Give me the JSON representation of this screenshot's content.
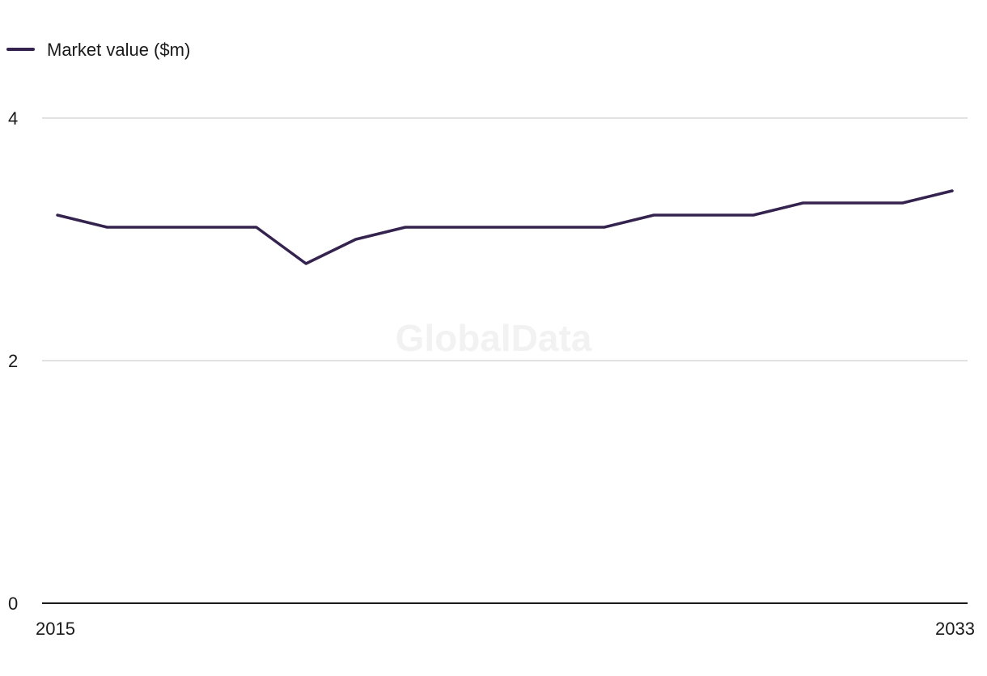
{
  "chart_data": {
    "type": "line",
    "title": "",
    "xlabel": "",
    "ylabel": "",
    "x": [
      2015,
      2016,
      2017,
      2018,
      2019,
      2020,
      2021,
      2022,
      2023,
      2024,
      2025,
      2026,
      2027,
      2028,
      2029,
      2030,
      2031,
      2032,
      2033
    ],
    "x_tick_labels": [
      "2015",
      "2033"
    ],
    "ylim": [
      0,
      4
    ],
    "y_ticks": [
      0,
      2,
      4
    ],
    "y_tick_labels": [
      "0",
      "2",
      "4"
    ],
    "grid": true,
    "legend_position": "top-left",
    "series": [
      {
        "name": "Market value ($m)",
        "color": "#35234f",
        "values": [
          3.2,
          3.1,
          3.1,
          3.1,
          3.1,
          2.8,
          3.0,
          3.1,
          3.1,
          3.1,
          3.1,
          3.1,
          3.2,
          3.2,
          3.2,
          3.3,
          3.3,
          3.3,
          3.4
        ]
      }
    ]
  },
  "watermark": "GlobalData",
  "colors": {
    "line": "#35234f",
    "gridline": "#d9d9d9",
    "axis": "#1a1a1a"
  }
}
